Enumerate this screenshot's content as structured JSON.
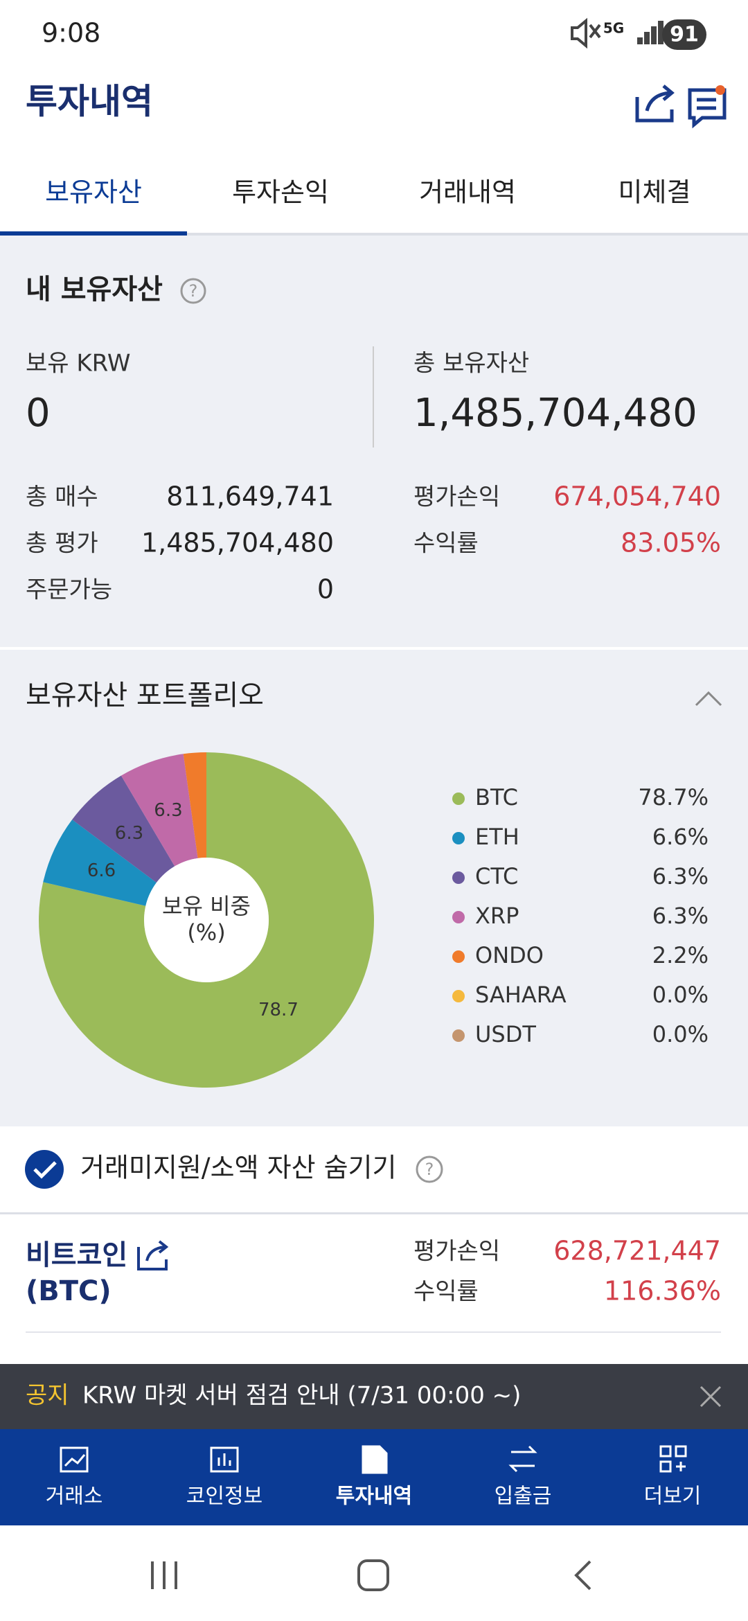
{
  "status_bar": {
    "time": "9:08",
    "network": "5G",
    "battery": "91"
  },
  "header": {
    "title": "투자내역"
  },
  "tabs": [
    "보유자산",
    "투자손익",
    "거래내역",
    "미체결"
  ],
  "holdings": {
    "title": "내 보유자산",
    "krw_label": "보유 KRW",
    "krw_value": "0",
    "total_label": "총 보유자산",
    "total_value": "1,485,704,480",
    "left_rows": [
      [
        "총 매수",
        "811,649,741"
      ],
      [
        "총 평가",
        "1,485,704,480"
      ],
      [
        "주문가능",
        "0"
      ]
    ],
    "right_rows": [
      [
        "평가손익",
        "674,054,740"
      ],
      [
        "수익률",
        "83.05%"
      ]
    ]
  },
  "chart_data": {
    "type": "pie",
    "title": "보유자산 포트폴리오",
    "center_label": [
      "보유 비중",
      "(%)"
    ],
    "categories": [
      "BTC",
      "ETH",
      "CTC",
      "XRP",
      "ONDO",
      "SAHARA",
      "USDT"
    ],
    "values": [
      78.7,
      6.6,
      6.3,
      6.3,
      2.2,
      0.0,
      0.0
    ],
    "value_labels": [
      "78.7%",
      "6.6%",
      "6.3%",
      "6.3%",
      "2.2%",
      "0.0%",
      "0.0%"
    ],
    "colors": [
      "#9bbb59",
      "#1b8fc0",
      "#6b5a9e",
      "#c06aa8",
      "#f07b2b",
      "#f5b93d",
      "#c4956e"
    ]
  },
  "filter": {
    "label": "거래미지원/소액 자산 숨기기"
  },
  "coin": {
    "name": "비트코인",
    "symbol": "(BTC)",
    "rows": [
      [
        "평가손익",
        "628,721,447"
      ],
      [
        "수익률",
        "116.36%"
      ]
    ]
  },
  "notice": {
    "tag": "공지",
    "text": "KRW 마켓 서버 점검 안내 (7/31 00:00 ~)"
  },
  "bottom_nav": [
    "거래소",
    "코인정보",
    "투자내역",
    "입출금",
    "더보기"
  ]
}
